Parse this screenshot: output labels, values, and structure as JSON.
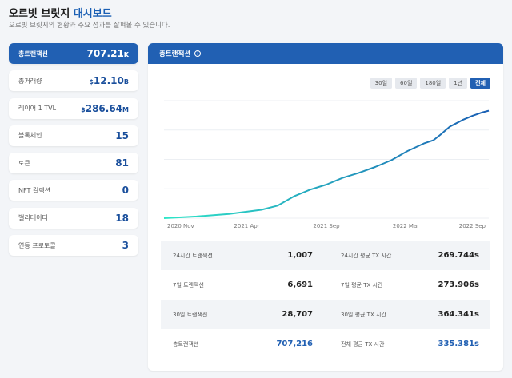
{
  "header": {
    "title_main": "오르빗 브릿지 ",
    "title_accent": "대시보드",
    "subtitle": "오르빗 브릿지의 현황과 주요 성과를 살펴볼 수 있습니다."
  },
  "metrics": [
    {
      "label": "총트랜잭션",
      "value": "707.21",
      "unit": "K",
      "prefix": ""
    },
    {
      "label": "총거래량",
      "value": "12.10",
      "unit": "B",
      "prefix": "$"
    },
    {
      "label": "레이어 1 TVL",
      "value": "286.64",
      "unit": "M",
      "prefix": "$"
    },
    {
      "label": "블록체인",
      "value": "15",
      "unit": "",
      "prefix": ""
    },
    {
      "label": "토큰",
      "value": "81",
      "unit": "",
      "prefix": ""
    },
    {
      "label": "NFT 컬렉션",
      "value": "0",
      "unit": "",
      "prefix": ""
    },
    {
      "label": "밸리데이터",
      "value": "18",
      "unit": "",
      "prefix": ""
    },
    {
      "label": "연동 프로토콜",
      "value": "3",
      "unit": "",
      "prefix": ""
    }
  ],
  "panel": {
    "title": "총트랜잭션",
    "info_icon": "i",
    "ranges": [
      "30일",
      "60일",
      "180일",
      "1년",
      "전체"
    ],
    "active_range": "전체"
  },
  "chart_data": {
    "type": "line",
    "title": "총트랜잭션",
    "x_tick_labels": [
      "2020 Nov",
      "2021 Apr",
      "2021 Sep",
      "2022 Mar",
      "2022 Sep"
    ],
    "x": [
      0,
      10,
      20,
      30,
      35,
      40,
      45,
      50,
      55,
      60,
      65,
      70,
      75,
      80,
      83,
      85,
      88,
      90,
      92,
      95,
      98,
      100
    ],
    "values": [
      0,
      2,
      5,
      10,
      15,
      26,
      34,
      40,
      48,
      54,
      61,
      69,
      80,
      89,
      93,
      99,
      109,
      113,
      117,
      122,
      126,
      128
    ],
    "x_range": [
      0,
      100
    ],
    "y_range": [
      0,
      140
    ],
    "grid": true,
    "legend": "none"
  },
  "stats": [
    {
      "label_l": "24시간 트랜잭션",
      "value_l": "1,007",
      "label_r": "24시간 평균 TX 시간",
      "value_r": "269.744s"
    },
    {
      "label_l": "7일 트랜잭션",
      "value_l": "6,691",
      "label_r": "7일 평균 TX 시간",
      "value_r": "273.906s"
    },
    {
      "label_l": "30일 트랜잭션",
      "value_l": "28,707",
      "label_r": "30일 평균 TX 시간",
      "value_r": "364.341s"
    },
    {
      "label_l": "총트랜잭션",
      "value_l": "707,216",
      "label_r": "전체 평균 TX 시간",
      "value_r": "335.381s"
    }
  ],
  "colors": {
    "accent": "#2160b3",
    "line_start": "#2ee6c8",
    "line_end": "#1a5fb4"
  }
}
